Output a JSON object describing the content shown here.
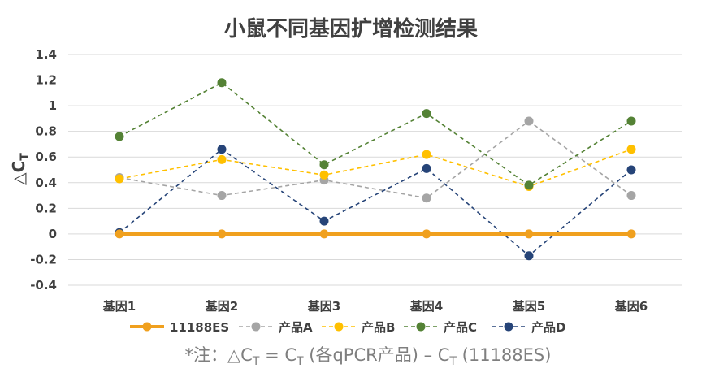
{
  "chart_data": {
    "type": "line",
    "title": "小鼠不同基因扩增检测结果",
    "xlabel": "",
    "ylabel": "△C",
    "ylabel_sub": "T",
    "categories": [
      "基因1",
      "基因2",
      "基因3",
      "基因4",
      "基因5",
      "基因6"
    ],
    "ylim": [
      -0.4,
      1.4
    ],
    "yticks": [
      -0.4,
      -0.2,
      0,
      0.2,
      0.4,
      0.6,
      0.8,
      1,
      1.2,
      1.4
    ],
    "grid": true,
    "legend_position": "bottom",
    "series": [
      {
        "name": "11188ES",
        "color": "#f0a01e",
        "style": "solid",
        "values": [
          0,
          0,
          0,
          0,
          0,
          0
        ]
      },
      {
        "name": "产品A",
        "color": "#a5a5a5",
        "style": "dashed",
        "values": [
          0.44,
          0.3,
          0.42,
          0.28,
          0.88,
          0.3
        ]
      },
      {
        "name": "产品B",
        "color": "#ffc000",
        "style": "dashed",
        "values": [
          0.43,
          0.58,
          0.46,
          0.62,
          0.37,
          0.66
        ]
      },
      {
        "name": "产品C",
        "color": "#548235",
        "style": "dashed",
        "values": [
          0.76,
          1.18,
          0.54,
          0.94,
          0.38,
          0.88
        ]
      },
      {
        "name": "产品D",
        "color": "#264478",
        "style": "dashed",
        "values": [
          0.01,
          0.66,
          0.1,
          0.51,
          -0.17,
          0.5
        ]
      }
    ]
  },
  "footnote": {
    "prefix": "*注：△C",
    "sub1": "T",
    "mid": " = C",
    "sub2": "T",
    "mid2": " (各qPCR产品) – C",
    "sub3": "T",
    "suffix": " (11188ES)"
  }
}
